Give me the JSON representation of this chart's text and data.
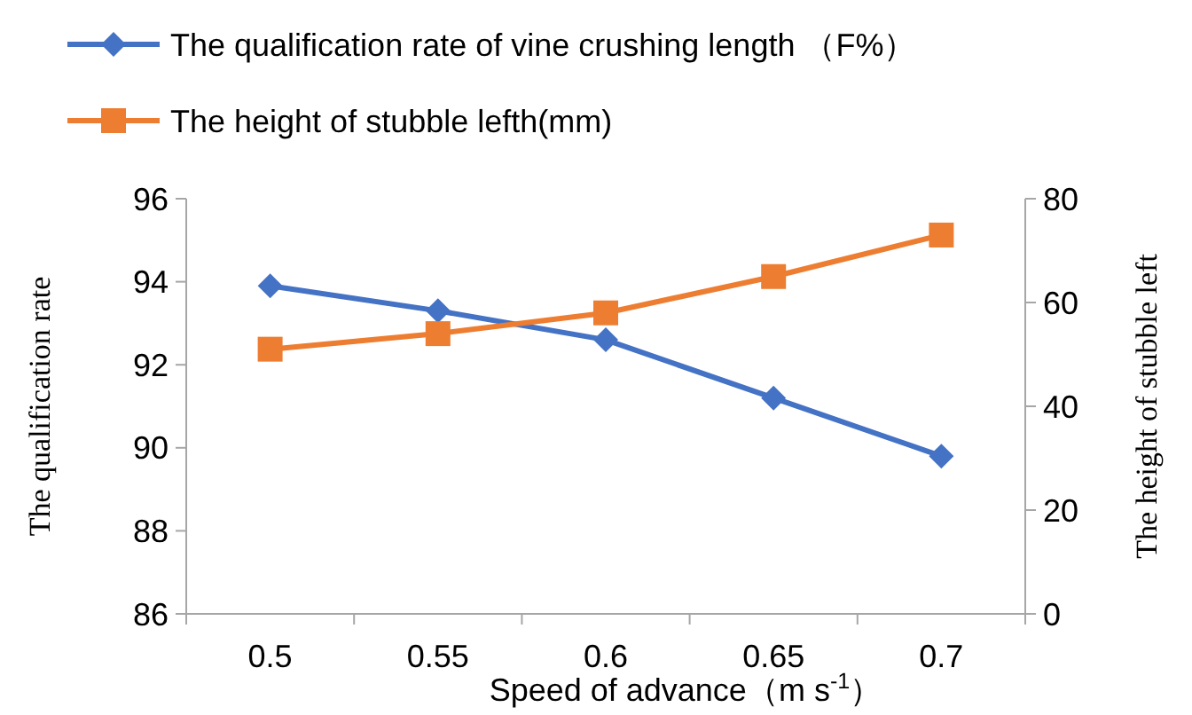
{
  "chart_data": {
    "type": "line",
    "xlabel": "Speed of advance（m s$^{-1}$）",
    "ylabel": "The qualification rate",
    "y2label": "The height of stubble left",
    "categories": [
      "0.5",
      "0.55",
      "0.6",
      "0.65",
      "0.7"
    ],
    "series": [
      {
        "name": "The qualification rate of vine crushing length （F%）",
        "color": "#4472c4",
        "marker": "diamond",
        "values": [
          93.9,
          93.3,
          92.6,
          91.2,
          89.8
        ]
      },
      {
        "name": "The height of stubble lefth(mm)",
        "color": "#ed7d31",
        "marker": "square",
        "axis": "y2",
        "values": [
          51,
          54,
          58,
          65,
          73
        ]
      }
    ],
    "ylim": [
      86,
      96
    ],
    "yticks": [
      86,
      88,
      90,
      92,
      94,
      96
    ],
    "y2lim": [
      0,
      80
    ],
    "y2ticks": [
      0,
      20,
      40,
      60,
      80
    ],
    "grid": false,
    "legend": "top left"
  }
}
